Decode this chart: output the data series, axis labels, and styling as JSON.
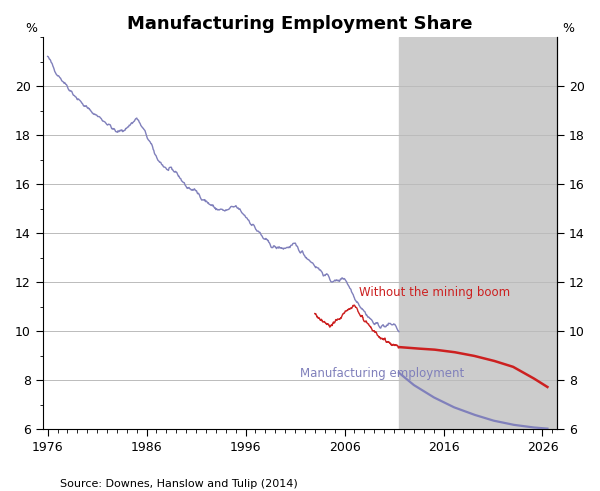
{
  "title": "Manufacturing Employment Share",
  "source": "Source: Downes, Hanslow and Tulip (2014)",
  "xlim": [
    1975.5,
    2027.5
  ],
  "ylim": [
    6,
    22
  ],
  "yticks": [
    6,
    8,
    10,
    12,
    14,
    16,
    18,
    20
  ],
  "xticks": [
    1976,
    1986,
    1996,
    2006,
    2016,
    2026
  ],
  "shade_start": 2011.5,
  "shade_end": 2027.5,
  "shade_color": "#cccccc",
  "blue_color": "#8080bb",
  "red_color": "#cc2020",
  "label_blue": "Manufacturing employment",
  "label_red": "Without the mining boom",
  "ylabel_left": "%",
  "ylabel_right": "%",
  "blue_hist_years": [
    1976,
    1977,
    1978,
    1979,
    1980,
    1981,
    1982,
    1983,
    1984,
    1985,
    1986,
    1987,
    1988,
    1989,
    1990,
    1991,
    1992,
    1993,
    1994,
    1995,
    1996,
    1997,
    1998,
    1999,
    2000,
    2001,
    2002,
    2003,
    2004,
    2005,
    2006,
    2007,
    2008,
    2009,
    2010,
    2011,
    2011.5
  ],
  "blue_hist_vals": [
    21.2,
    20.5,
    20.0,
    19.5,
    19.1,
    18.8,
    18.5,
    18.1,
    18.3,
    18.7,
    18.0,
    17.1,
    16.6,
    16.5,
    15.9,
    15.7,
    15.3,
    15.0,
    14.9,
    15.1,
    14.7,
    14.2,
    13.7,
    13.4,
    13.4,
    13.5,
    13.1,
    12.7,
    12.3,
    12.0,
    12.2,
    11.4,
    10.8,
    10.3,
    10.2,
    10.3,
    10.0
  ],
  "blue_proj_years": [
    2011.5,
    2013,
    2015,
    2017,
    2019,
    2021,
    2023,
    2025,
    2026.5
  ],
  "blue_proj_vals": [
    8.3,
    7.8,
    7.3,
    6.9,
    6.6,
    6.35,
    6.18,
    6.07,
    6.02
  ],
  "red_hist_years": [
    2003.0,
    2003.5,
    2004.0,
    2004.5,
    2005.0,
    2005.5,
    2006.0,
    2006.5,
    2007.0,
    2007.25,
    2007.5,
    2007.75,
    2008.0,
    2008.5,
    2009.0,
    2009.5,
    2010.0,
    2010.5,
    2011.0,
    2011.5
  ],
  "red_hist_vals": [
    10.7,
    10.5,
    10.4,
    10.2,
    10.35,
    10.5,
    10.75,
    10.9,
    11.05,
    10.9,
    10.7,
    10.55,
    10.45,
    10.25,
    10.0,
    9.75,
    9.65,
    9.55,
    9.45,
    9.35
  ],
  "red_proj_years": [
    2011.5,
    2013,
    2015,
    2017,
    2019,
    2021,
    2023,
    2025,
    2026.5
  ],
  "red_proj_vals": [
    9.35,
    9.3,
    9.25,
    9.15,
    9.0,
    8.8,
    8.55,
    8.1,
    7.72
  ]
}
